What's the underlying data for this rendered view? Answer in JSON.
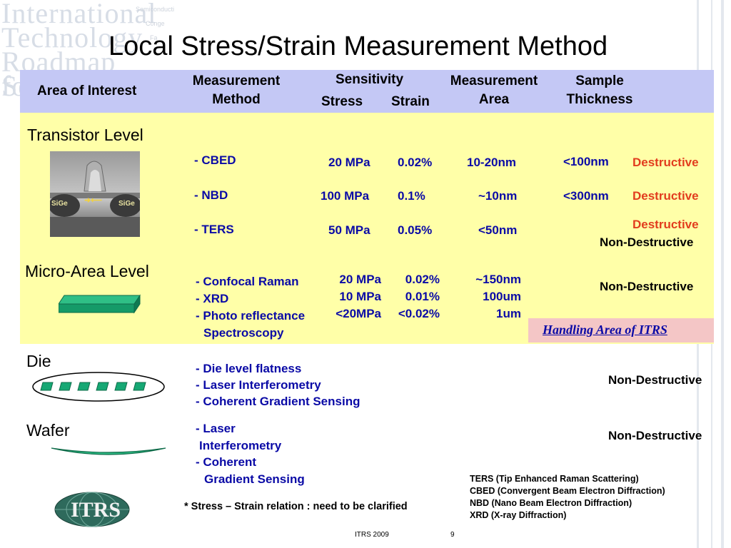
{
  "watermark": {
    "lines": [
      "International",
      "Technology",
      "Roadmap for",
      "Se"
    ],
    "small": [
      "Semiconducti",
      "Conge",
      "Fa"
    ]
  },
  "title": "Local Stress/Strain Measurement Method",
  "header": {
    "area_of_interest": "Area of Interest",
    "measurement_method_1": "Measurement",
    "measurement_method_2": "Method",
    "sensitivity": "Sensitivity",
    "stress": "Stress",
    "strain": "Strain",
    "measurement_area_1": "Measurement",
    "measurement_area_2": "Area",
    "sample_thickness_1": "Sample",
    "sample_thickness_2": "Thickness"
  },
  "levels": {
    "transistor": "Transistor Level",
    "micro_area": "Micro-Area Level",
    "die": "Die",
    "wafer": "Wafer"
  },
  "transistor_image": {
    "sige_left": "SiGe",
    "sige_right": "SiGe",
    "arrows": "➜⟵"
  },
  "transistor_rows": [
    {
      "method": "- CBED",
      "stress": "20 MPa",
      "strain": "0.02%",
      "area": "10-20nm",
      "thickness": "<100nm",
      "type": "Destructive"
    },
    {
      "method": "- NBD",
      "stress": "100 MPa",
      "strain": "0.1%",
      "area": "~10nm",
      "thickness": "<300nm",
      "type": "Destructive"
    },
    {
      "method": "- TERS",
      "stress": "50 MPa",
      "strain": "0.05%",
      "area": "<50nm",
      "type": "Destructive",
      "type2": "Non-Destructive"
    }
  ],
  "micro_area": {
    "methods": [
      "- Confocal Raman",
      "- XRD",
      "- Photo reflectance",
      "Spectroscopy"
    ],
    "stress": [
      "20 MPa",
      "10 MPa",
      "<20MPa"
    ],
    "strain": [
      "0.02%",
      "0.01%",
      "<0.02%"
    ],
    "area": [
      "~150nm",
      "100um",
      "1um"
    ],
    "type": "Non-Destructive"
  },
  "handling": "Handling Area of ITRS",
  "die": {
    "methods": [
      "- Die level flatness",
      "- Laser Interferometry",
      "- Coherent Gradient Sensing"
    ],
    "type": "Non-Destructive"
  },
  "wafer": {
    "methods": [
      "- Laser",
      "Interferometry",
      "- Coherent",
      "Gradient Sensing"
    ],
    "type": "Non-Destructive"
  },
  "logo_text": "ITRS",
  "note": "* Stress – Strain relation : need to be clarified",
  "abbreviations": [
    "TERS (Tip Enhanced Raman Scattering)",
    "CBED (Convergent Beam Electron Diffraction)",
    "NBD (Nano Beam Electron Diffraction)",
    "XRD (X-ray Diffraction)"
  ],
  "footer": {
    "label": "ITRS  2009",
    "page": "9"
  },
  "colors": {
    "header_band": "#c4c8f5",
    "yellow_band": "#ffffa8",
    "method_blue": "#0a0aa6",
    "destructive": "#e23c1e",
    "handling_bg": "#f4c6c6"
  }
}
